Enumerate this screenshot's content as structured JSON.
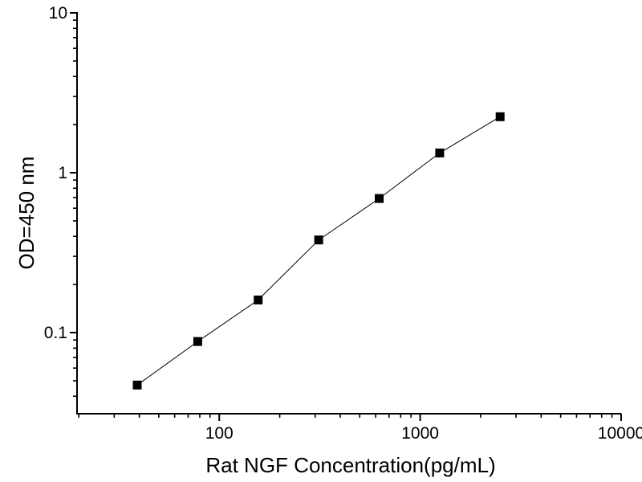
{
  "chart_data": {
    "type": "line",
    "xlabel": "Rat NGF Concentration(pg/mL)",
    "ylabel": "OD=450 nm",
    "x_scale": "log",
    "y_scale": "log",
    "xlim": [
      19.6,
      10000
    ],
    "ylim": [
      0.0311,
      10
    ],
    "x_ticks": [
      100,
      1000,
      10000
    ],
    "x_tick_labels": [
      "100",
      "1000",
      "10000"
    ],
    "y_ticks": [
      10,
      1,
      0.1
    ],
    "y_tick_labels": [
      "10",
      "1",
      "0.1"
    ],
    "grid": false,
    "legend": "none",
    "series": [
      {
        "marker": "filled-square",
        "marker_color": "#000000",
        "line_color": "#000000",
        "x": [
          39.06,
          78.13,
          156.25,
          312.5,
          625,
          1250,
          2500
        ],
        "y": [
          0.047,
          0.088,
          0.16,
          0.38,
          0.69,
          1.33,
          2.24
        ]
      }
    ]
  }
}
